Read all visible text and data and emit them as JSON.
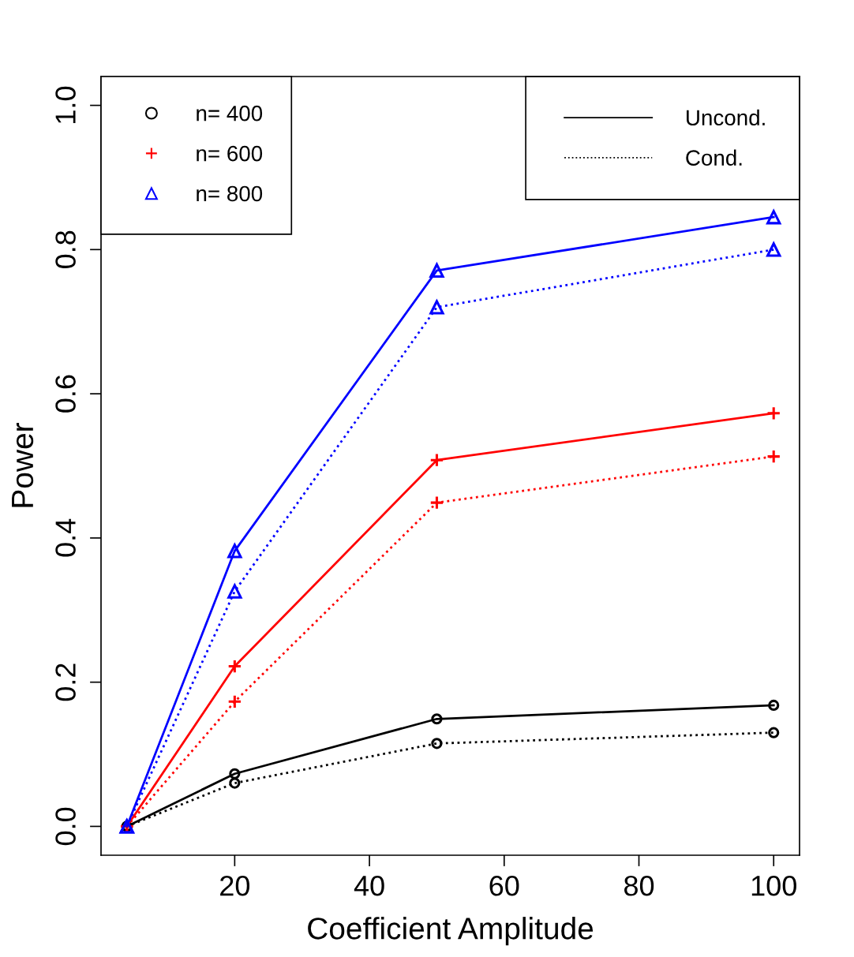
{
  "chart_data": {
    "type": "line",
    "xlabel": "Coefficient Amplitude",
    "ylabel": "Power",
    "x": [
      4,
      20,
      50,
      100
    ],
    "series": [
      {
        "name": "n= 400",
        "color": "#000000",
        "marker": "circle",
        "line_style": "solid",
        "values": [
          0,
          0.073,
          0.149,
          0.168
        ]
      },
      {
        "color": "#000000",
        "marker": "circle",
        "line_style": "dotted",
        "values": [
          0,
          0.06,
          0.115,
          0.13
        ]
      },
      {
        "name": "n= 600",
        "color": "#ff0000",
        "marker": "cross",
        "line_style": "solid",
        "values": [
          0,
          0.222,
          0.508,
          0.573
        ]
      },
      {
        "color": "#ff0000",
        "marker": "cross",
        "line_style": "dotted",
        "values": [
          0,
          0.173,
          0.449,
          0.513
        ]
      },
      {
        "name": "n= 800",
        "color": "#0000ff",
        "marker": "triangle",
        "line_style": "solid",
        "values": [
          0,
          0.382,
          0.771,
          0.845
        ]
      },
      {
        "color": "#0000ff",
        "marker": "triangle",
        "line_style": "dotted",
        "values": [
          0,
          0.326,
          0.72,
          0.8
        ]
      }
    ],
    "annotations": [
      "Uncond.",
      "Cond."
    ],
    "xlim": [
      0.16,
      103.84
    ],
    "ylim": [
      -0.04,
      1.04
    ],
    "xticks": [
      20,
      40,
      60,
      80,
      100
    ],
    "yticks": [
      {
        "value": 0,
        "label": "0.0"
      },
      {
        "value": 0.2,
        "label": "0.2"
      },
      {
        "value": 0.4,
        "label": "0.4"
      },
      {
        "value": 0.6,
        "label": "0.6"
      },
      {
        "value": 0.8,
        "label": "0.8"
      },
      {
        "value": 1.0,
        "label": "1.0"
      }
    ],
    "grid": false,
    "legend": "top left"
  }
}
